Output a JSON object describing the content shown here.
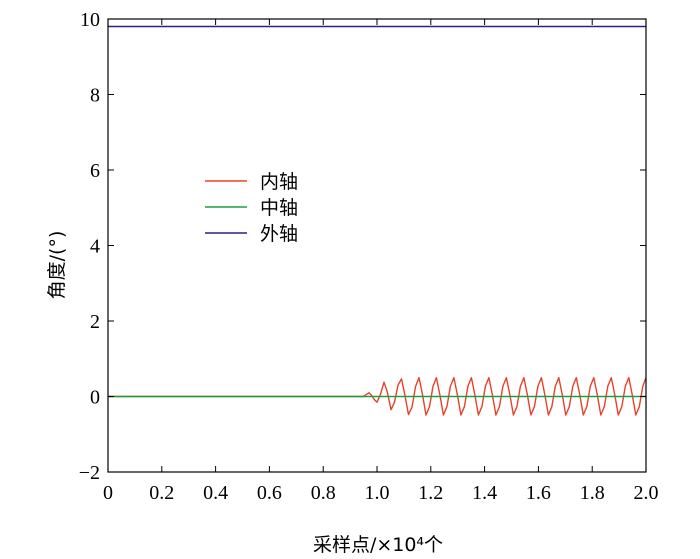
{
  "chart_data": {
    "type": "line",
    "xlabel": "采样点/×10⁴个",
    "ylabel": "角度/(°)",
    "xlim": [
      0,
      2.0
    ],
    "ylim": [
      -2,
      10
    ],
    "x_ticks": [
      "0",
      "0.2",
      "0.4",
      "0.6",
      "0.8",
      "1.0",
      "1.2",
      "1.4",
      "1.6",
      "1.8",
      "2.0"
    ],
    "y_ticks": [
      "−2",
      "0",
      "2",
      "4",
      "6",
      "8",
      "10"
    ],
    "grid": false,
    "legend_position": "center-left",
    "series": [
      {
        "name": "内轴",
        "color": "#e8412c",
        "x": [
          0,
          0.95,
          0.96,
          0.97,
          0.98,
          0.99,
          1.0,
          1.013,
          1.026,
          1.039,
          1.052,
          1.065,
          1.078,
          1.091,
          1.104,
          1.117,
          1.13,
          1.143,
          1.156,
          1.169,
          1.182,
          1.195,
          1.208,
          1.221,
          1.234,
          1.247,
          1.26,
          1.273,
          1.286,
          1.299,
          1.312,
          1.325,
          1.338,
          1.351,
          1.364,
          1.377,
          1.39,
          1.403,
          1.416,
          1.429,
          1.442,
          1.455,
          1.468,
          1.481,
          1.494,
          1.507,
          1.52,
          1.533,
          1.546,
          1.559,
          1.572,
          1.585,
          1.598,
          1.611,
          1.624,
          1.637,
          1.65,
          1.663,
          1.676,
          1.689,
          1.702,
          1.715,
          1.728,
          1.741,
          1.754,
          1.767,
          1.78,
          1.793,
          1.806,
          1.819,
          1.832,
          1.845,
          1.858,
          1.871,
          1.884,
          1.897,
          1.91,
          1.923,
          1.936,
          1.949,
          1.962,
          1.975,
          1.988,
          2.0
        ],
        "values": [
          0,
          0,
          0.05,
          0.1,
          0.03,
          -0.08,
          -0.15,
          0.06,
          0.38,
          0.1,
          -0.35,
          -0.15,
          0.3,
          0.47,
          0.02,
          -0.48,
          -0.28,
          0.26,
          0.5,
          0.05,
          -0.49,
          -0.27,
          0.27,
          0.5,
          0.04,
          -0.49,
          -0.27,
          0.27,
          0.5,
          0.04,
          -0.49,
          -0.27,
          0.27,
          0.5,
          0.04,
          -0.49,
          -0.27,
          0.27,
          0.5,
          0.04,
          -0.49,
          -0.27,
          0.27,
          0.5,
          0.04,
          -0.49,
          -0.27,
          0.27,
          0.5,
          0.04,
          -0.49,
          -0.27,
          0.27,
          0.5,
          0.04,
          -0.49,
          -0.27,
          0.27,
          0.5,
          0.04,
          -0.49,
          -0.27,
          0.27,
          0.5,
          0.04,
          -0.49,
          -0.27,
          0.27,
          0.5,
          0.04,
          -0.49,
          -0.27,
          0.27,
          0.5,
          0.04,
          -0.49,
          -0.27,
          0.27,
          0.5,
          0.04,
          -0.49,
          -0.27,
          0.27,
          0.5
        ]
      },
      {
        "name": "中轴",
        "color": "#1f9e3c",
        "x": [
          0,
          0.25,
          0.5,
          0.75,
          1.0,
          1.25,
          1.5,
          1.75,
          2.0
        ],
        "values": [
          0,
          0,
          0,
          0,
          0,
          0,
          0,
          0,
          0
        ]
      },
      {
        "name": "外轴",
        "color": "#2a1f8f",
        "x": [
          0,
          0.25,
          0.5,
          0.75,
          1.0,
          1.25,
          1.5,
          1.75,
          2.0
        ],
        "values": [
          9.8,
          9.8,
          9.8,
          9.8,
          9.8,
          9.8,
          9.8,
          9.8,
          9.8
        ]
      }
    ]
  }
}
